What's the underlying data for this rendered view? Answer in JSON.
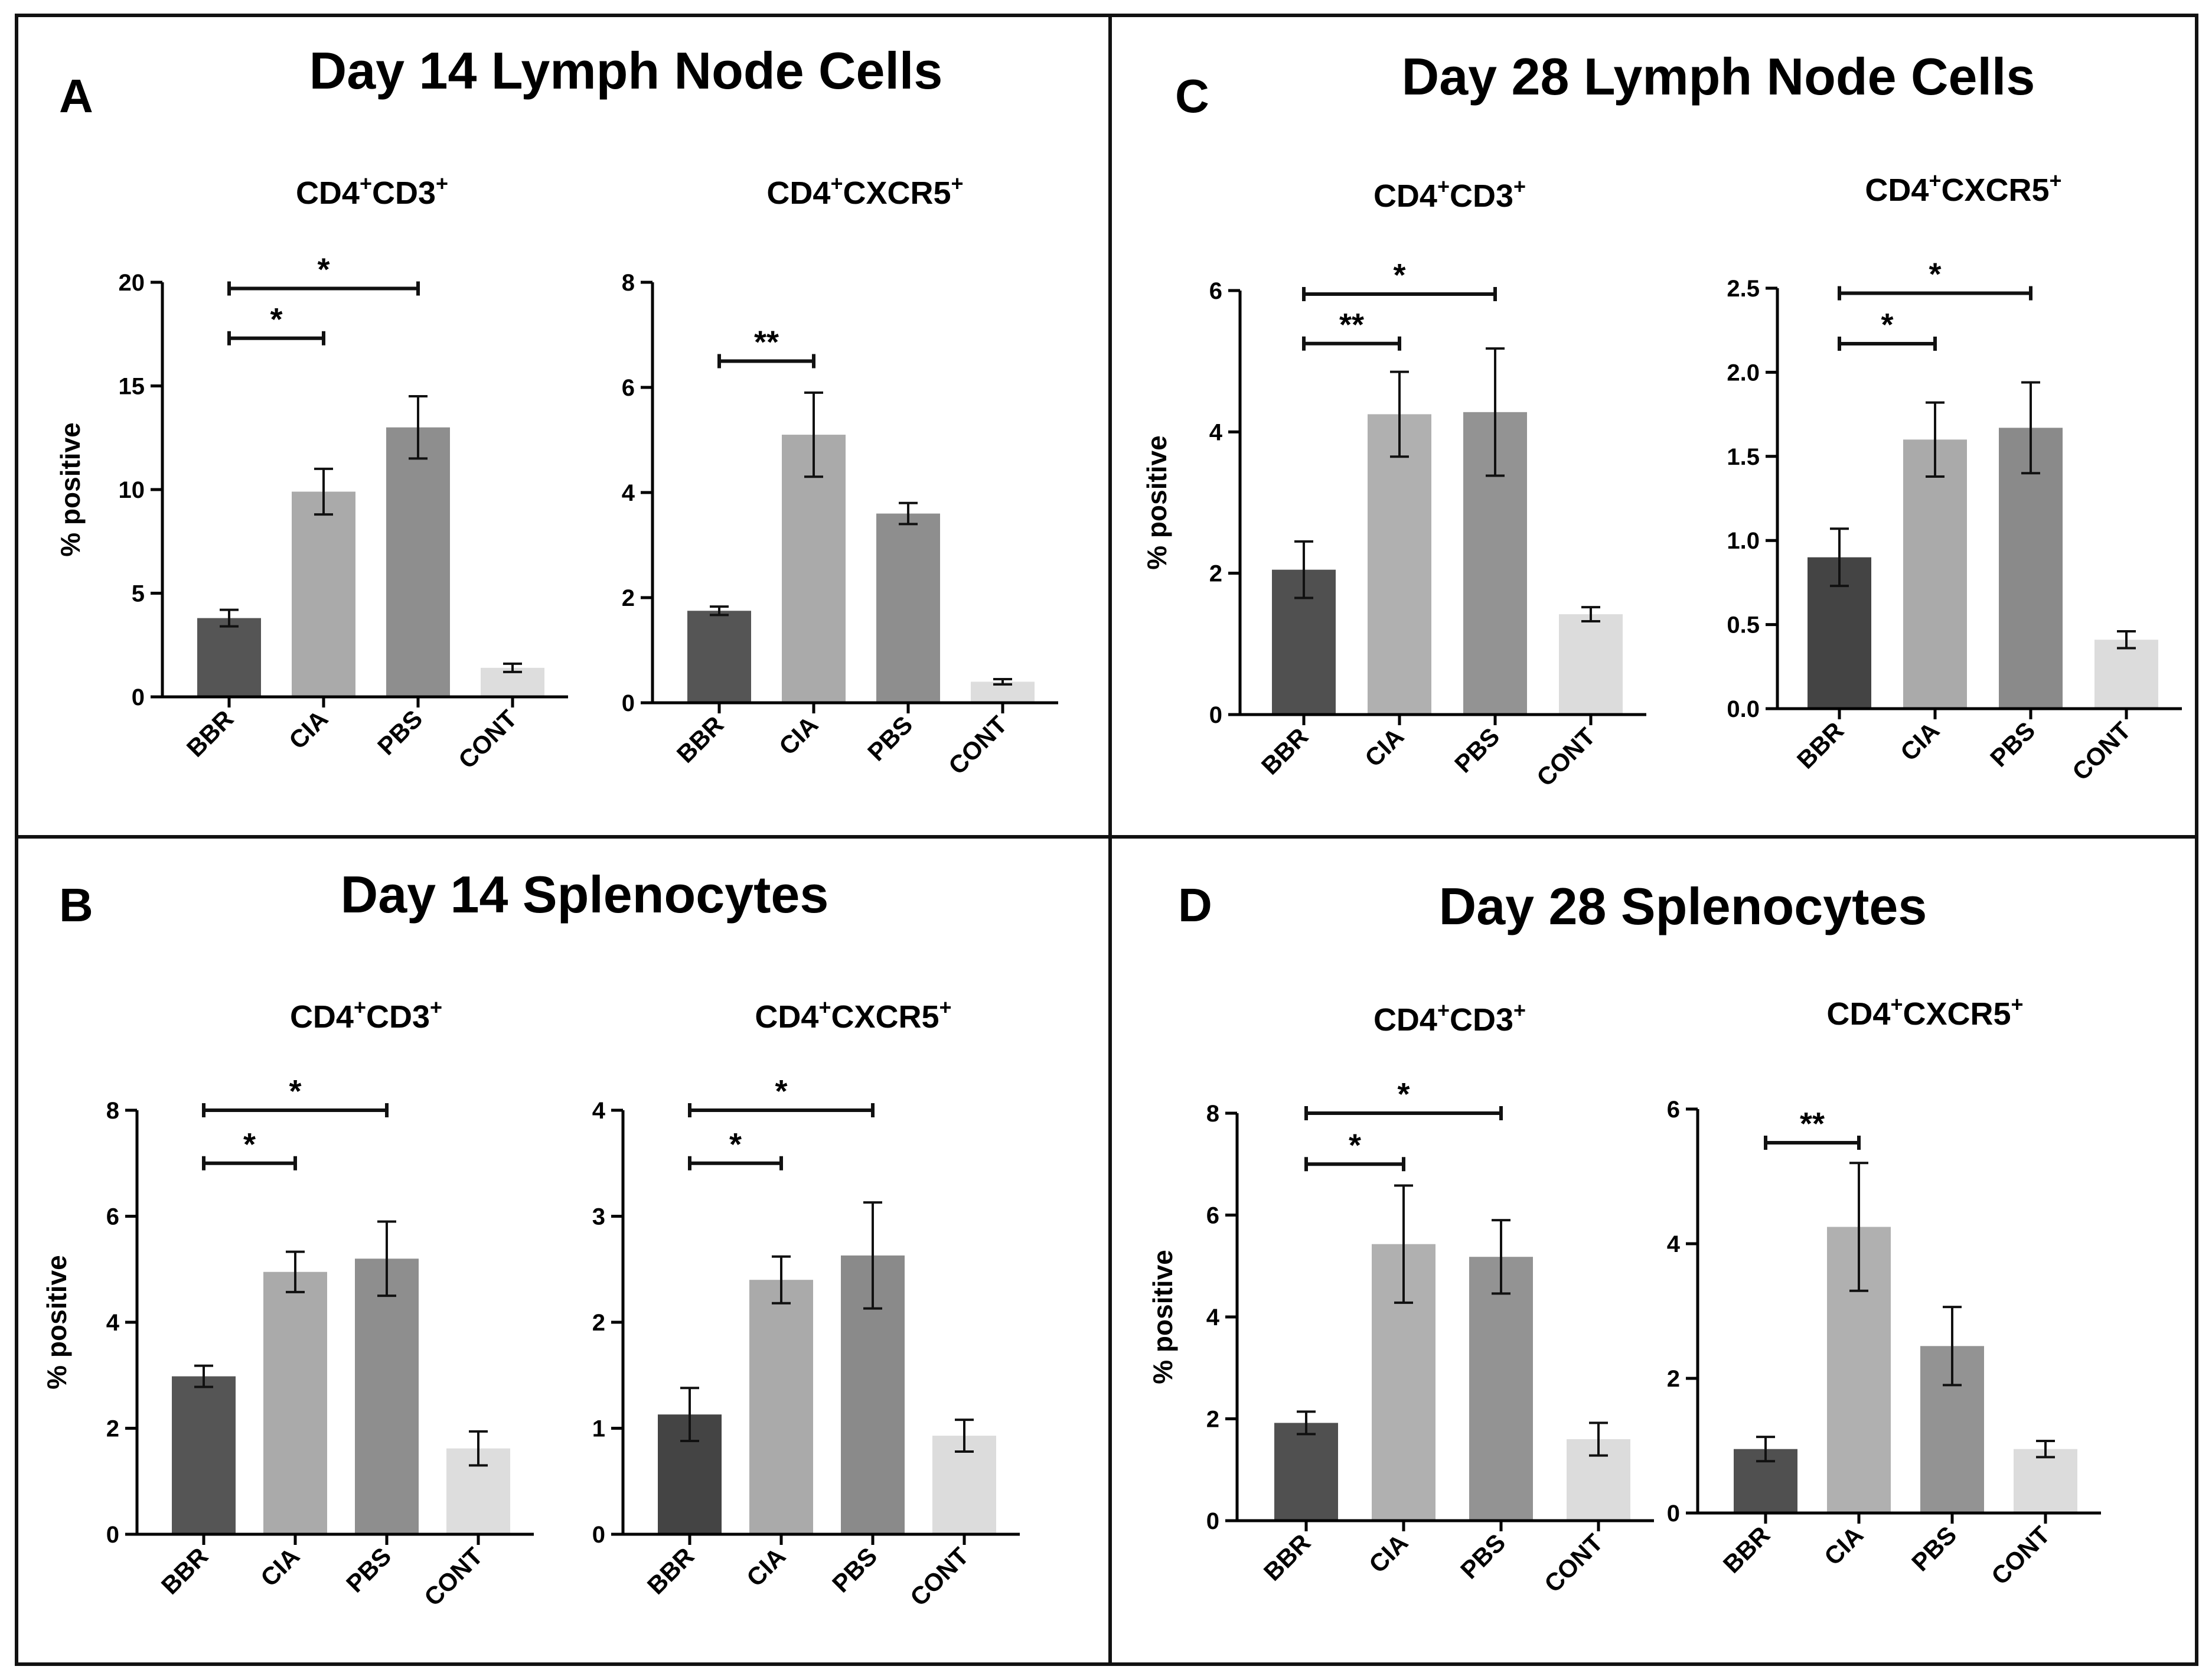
{
  "figure": {
    "panels": [
      {
        "letter": "A",
        "title": "Day 14 Lymph Node Cells",
        "charts": [
          {
            "type": "bar",
            "title_base": "CD4",
            "title_sup1": "+",
            "title_mid": "CD3",
            "title_sup2": "+",
            "ylabel": "% positive",
            "ylim": [
              0,
              20
            ],
            "yticks": [
              0,
              5,
              10,
              15,
              20
            ],
            "tick_labels": [
              "0",
              "5",
              "10",
              "15",
              "20"
            ],
            "categories": [
              "BBR",
              "CIA",
              "PBS",
              "CONT"
            ],
            "values": [
              3.8,
              9.9,
              13.0,
              1.4
            ],
            "errors": [
              0.4,
              1.1,
              1.5,
              0.2
            ],
            "bar_colors": [
              "#555555",
              "#aaaaaa",
              "#8e8e8e",
              "#dddddd"
            ],
            "significance": [
              {
                "from": 0,
                "to": 1,
                "label": "*",
                "y": 17.3
              },
              {
                "from": 0,
                "to": 2,
                "label": "*",
                "y": 19.7
              }
            ]
          },
          {
            "type": "bar",
            "title_base": "CD4",
            "title_sup1": "+",
            "title_mid": "CXCR5",
            "title_sup2": "+",
            "ylabel": "",
            "ylim": [
              0,
              8
            ],
            "yticks": [
              0,
              2,
              4,
              6,
              8
            ],
            "tick_labels": [
              "0",
              "2",
              "4",
              "6",
              "8"
            ],
            "categories": [
              "BBR",
              "CIA",
              "PBS",
              "CONT"
            ],
            "values": [
              1.75,
              5.1,
              3.6,
              0.4
            ],
            "errors": [
              0.08,
              0.8,
              0.2,
              0.05
            ],
            "bar_colors": [
              "#555555",
              "#aaaaaa",
              "#8e8e8e",
              "#dddddd"
            ],
            "significance": [
              {
                "from": 0,
                "to": 1,
                "label": "**",
                "y": 6.5
              }
            ]
          }
        ]
      },
      {
        "letter": "C",
        "title": "Day 28 Lymph Node Cells",
        "charts": [
          {
            "type": "bar",
            "title_base": "CD4",
            "title_sup1": "+",
            "title_mid": "CD3",
            "title_sup2": "+",
            "ylabel": "% positive",
            "ylim": [
              0,
              6
            ],
            "yticks": [
              0,
              2,
              4,
              6
            ],
            "tick_labels": [
              "0",
              "2",
              "4",
              "6"
            ],
            "categories": [
              "BBR",
              "CIA",
              "PBS",
              "CONT"
            ],
            "values": [
              2.05,
              4.25,
              4.28,
              1.42
            ],
            "errors": [
              0.4,
              0.6,
              0.9,
              0.1
            ],
            "bar_colors": [
              "#505050",
              "#b0b0b0",
              "#939393",
              "#dcdcdc"
            ],
            "significance": [
              {
                "from": 0,
                "to": 1,
                "label": "**",
                "y": 5.25
              },
              {
                "from": 0,
                "to": 2,
                "label": "*",
                "y": 5.95
              }
            ]
          },
          {
            "type": "bar",
            "title_base": "CD4",
            "title_sup1": "+",
            "title_mid": "CXCR5",
            "title_sup2": "+",
            "ylabel": "",
            "ylim": [
              0,
              2.5
            ],
            "yticks": [
              0,
              0.5,
              1.0,
              1.5,
              2.0,
              2.5
            ],
            "tick_labels": [
              "0.0",
              "0.5",
              "1.0",
              "1.5",
              "2.0",
              "2.5"
            ],
            "categories": [
              "BBR",
              "CIA",
              "PBS",
              "CONT"
            ],
            "values": [
              0.9,
              1.6,
              1.67,
              0.41
            ],
            "errors": [
              0.17,
              0.22,
              0.27,
              0.05
            ],
            "bar_colors": [
              "#444444",
              "#aaaaaa",
              "#8a8a8a",
              "#dcdcdc"
            ],
            "significance": [
              {
                "from": 0,
                "to": 1,
                "label": "*",
                "y": 2.17
              },
              {
                "from": 0,
                "to": 2,
                "label": "*",
                "y": 2.47
              }
            ]
          }
        ]
      },
      {
        "letter": "B",
        "title": "Day 14 Splenocytes",
        "charts": [
          {
            "type": "bar",
            "title_base": "CD4",
            "title_sup1": "+",
            "title_mid": "CD3",
            "title_sup2": "+",
            "ylabel": "% positive",
            "ylim": [
              0,
              8
            ],
            "yticks": [
              0,
              2,
              4,
              6,
              8
            ],
            "tick_labels": [
              "0",
              "2",
              "4",
              "6",
              "8"
            ],
            "categories": [
              "BBR",
              "CIA",
              "PBS",
              "CONT"
            ],
            "values": [
              2.98,
              4.95,
              5.2,
              1.62
            ],
            "errors": [
              0.2,
              0.38,
              0.7,
              0.32
            ],
            "bar_colors": [
              "#555555",
              "#aaaaaa",
              "#8e8e8e",
              "#dddddd"
            ],
            "significance": [
              {
                "from": 0,
                "to": 1,
                "label": "*",
                "y": 7.0
              },
              {
                "from": 0,
                "to": 2,
                "label": "*",
                "y": 8.0
              }
            ]
          },
          {
            "type": "bar",
            "title_base": "CD4",
            "title_sup1": "+",
            "title_mid": "CXCR5",
            "title_sup2": "+",
            "ylabel": "",
            "ylim": [
              0,
              4
            ],
            "yticks": [
              0,
              1,
              2,
              3,
              4
            ],
            "tick_labels": [
              "0",
              "1",
              "2",
              "3",
              "4"
            ],
            "categories": [
              "BBR",
              "CIA",
              "PBS",
              "CONT"
            ],
            "values": [
              1.13,
              2.4,
              2.63,
              0.93
            ],
            "errors": [
              0.25,
              0.22,
              0.5,
              0.15
            ],
            "bar_colors": [
              "#444444",
              "#aaaaaa",
              "#8a8a8a",
              "#dcdcdc"
            ],
            "significance": [
              {
                "from": 0,
                "to": 1,
                "label": "*",
                "y": 3.5
              },
              {
                "from": 0,
                "to": 2,
                "label": "*",
                "y": 4.0
              }
            ]
          }
        ]
      },
      {
        "letter": "D",
        "title": "Day 28 Splenocytes",
        "charts": [
          {
            "type": "bar",
            "title_base": "CD4",
            "title_sup1": "+",
            "title_mid": "CD3",
            "title_sup2": "+",
            "ylabel": "% positive",
            "ylim": [
              0,
              8
            ],
            "yticks": [
              0,
              2,
              4,
              6,
              8
            ],
            "tick_labels": [
              "0",
              "2",
              "4",
              "6",
              "8"
            ],
            "categories": [
              "BBR",
              "CIA",
              "PBS",
              "CONT"
            ],
            "values": [
              1.92,
              5.43,
              5.18,
              1.6
            ],
            "errors": [
              0.22,
              1.15,
              0.72,
              0.32
            ],
            "bar_colors": [
              "#505050",
              "#b0b0b0",
              "#939393",
              "#dcdcdc"
            ],
            "significance": [
              {
                "from": 0,
                "to": 1,
                "label": "*",
                "y": 7.0
              },
              {
                "from": 0,
                "to": 2,
                "label": "*",
                "y": 8.0
              }
            ]
          },
          {
            "type": "bar",
            "title_base": "CD4",
            "title_sup1": "+",
            "title_mid": "CXCR5",
            "title_sup2": "+",
            "ylabel": "",
            "ylim": [
              0,
              6
            ],
            "yticks": [
              0,
              2,
              4,
              6
            ],
            "tick_labels": [
              "0",
              "2",
              "4",
              "6"
            ],
            "categories": [
              "BBR",
              "CIA",
              "PBS",
              "CONT"
            ],
            "values": [
              0.95,
              4.25,
              2.48,
              0.95
            ],
            "errors": [
              0.18,
              0.95,
              0.58,
              0.12
            ],
            "bar_colors": [
              "#505050",
              "#b0b0b0",
              "#939393",
              "#dcdcdc"
            ],
            "significance": [
              {
                "from": 0,
                "to": 1,
                "label": "**",
                "y": 5.5
              }
            ]
          }
        ]
      }
    ]
  }
}
